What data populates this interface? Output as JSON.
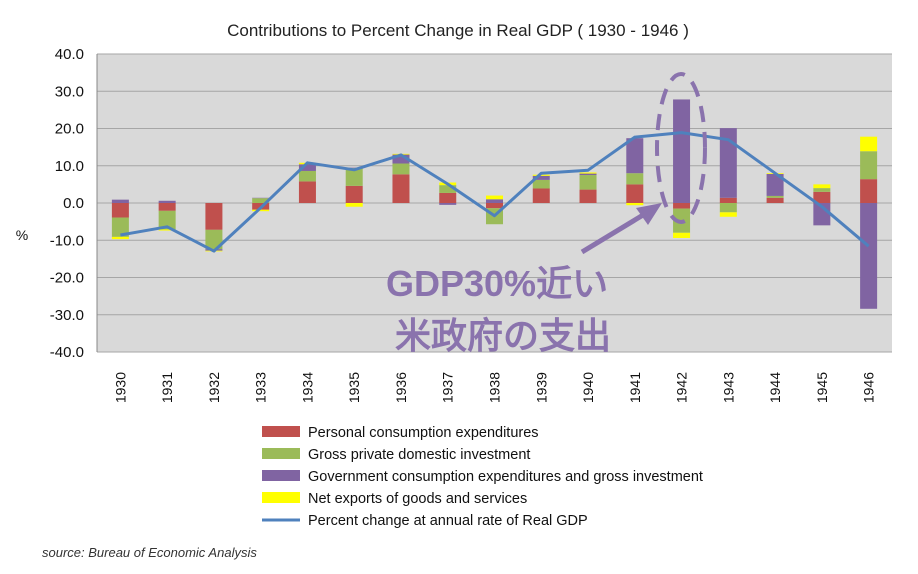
{
  "chart_data": {
    "type": "bar",
    "stacked": true,
    "title": "Contributions to Percent Change in Real GDP ( 1930 - 1946 )",
    "ylabel": "%",
    "xlabel": "",
    "ylim": [
      -40,
      40
    ],
    "yticks": [
      "40.0",
      "30.0",
      "20.0",
      "10.0",
      "0.0",
      "-10.0",
      "-20.0",
      "-30.0",
      "-40.0"
    ],
    "categories": [
      "1930",
      "1931",
      "1932",
      "1933",
      "1934",
      "1935",
      "1936",
      "1937",
      "1938",
      "1939",
      "1940",
      "1941",
      "1942",
      "1943",
      "1944",
      "1945",
      "1946"
    ],
    "grid": true,
    "legend_position": "bottom",
    "series": [
      {
        "name": "Personal consumption expenditures",
        "color": "#c0504d",
        "values": [
          -3.9,
          -2.1,
          -7.2,
          -1.8,
          5.8,
          4.6,
          7.7,
          2.7,
          -1.4,
          3.9,
          3.6,
          5.0,
          -1.5,
          1.4,
          1.4,
          3.0,
          6.4
        ]
      },
      {
        "name": "Gross private domestic investment",
        "color": "#9bbb59",
        "values": [
          -5.2,
          -5.0,
          -5.2,
          1.3,
          2.8,
          4.8,
          2.9,
          2.1,
          -4.3,
          2.3,
          3.9,
          3.0,
          -6.5,
          -2.5,
          0.5,
          1.0,
          7.5
        ]
      },
      {
        "name": "Government consumption expenditures and gross investment",
        "color": "#8064a2",
        "values": [
          0.9,
          0.6,
          -0.4,
          0.1,
          1.8,
          0.1,
          2.4,
          -0.5,
          1.0,
          1.1,
          0.4,
          9.4,
          27.8,
          18.7,
          5.9,
          -6.0,
          -28.4
        ]
      },
      {
        "name": "Net exports of goods and services",
        "color": "#ffff00",
        "values": [
          -0.6,
          -0.3,
          -0.2,
          -0.4,
          0.4,
          -1.0,
          0.2,
          0.7,
          1.0,
          0.3,
          0.3,
          -0.6,
          -1.4,
          -1.2,
          0.2,
          1.0,
          3.9
        ]
      }
    ],
    "line": {
      "name": "Percent change at annual rate of Real GDP",
      "color": "#4f81bd",
      "values": [
        -8.6,
        -6.4,
        -12.9,
        -1.3,
        10.8,
        8.9,
        12.9,
        5.1,
        -3.4,
        8.0,
        8.8,
        17.7,
        18.9,
        17.0,
        8.0,
        -1.0,
        -11.6
      ]
    },
    "annotation": {
      "lines": [
        "GDP30%近い",
        "米政府の支出"
      ],
      "highlight_category": "1942",
      "color": "#8a73ad"
    }
  },
  "source": "source: Bureau of Economic Analysis"
}
